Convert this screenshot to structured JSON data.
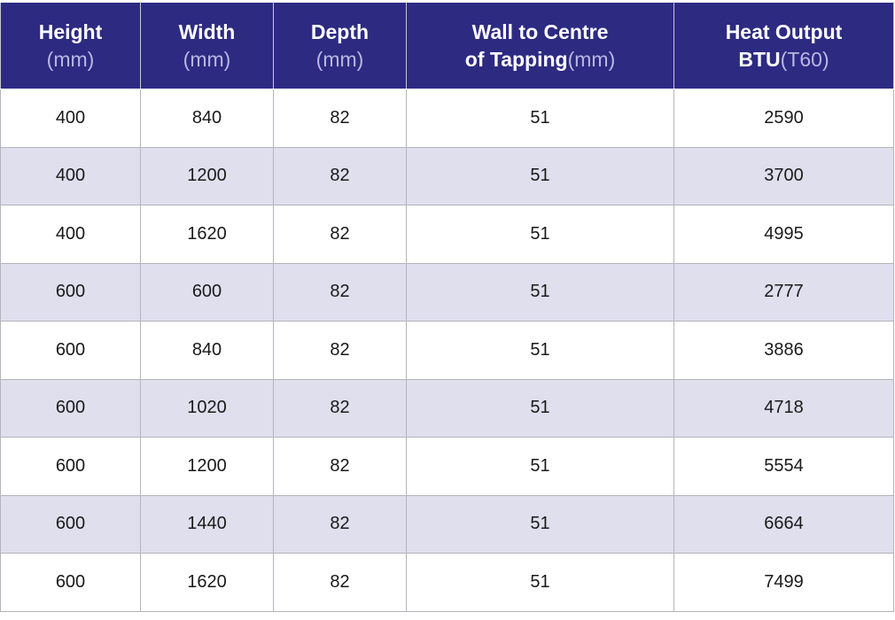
{
  "table": {
    "header": [
      {
        "title": [
          "Height"
        ],
        "unit": "(mm)"
      },
      {
        "title": [
          "Width"
        ],
        "unit": "(mm)"
      },
      {
        "title": [
          "Depth"
        ],
        "unit": "(mm)"
      },
      {
        "title": [
          "Wall to Centre",
          "of Tapping"
        ],
        "unit": "(mm)"
      },
      {
        "title": [
          "Heat Output",
          "BTU"
        ],
        "unit": "(T60)"
      }
    ],
    "rows": [
      [
        400,
        840,
        82,
        51,
        2590
      ],
      [
        400,
        1200,
        82,
        51,
        3700
      ],
      [
        400,
        1620,
        82,
        51,
        4995
      ],
      [
        600,
        600,
        82,
        51,
        2777
      ],
      [
        600,
        840,
        82,
        51,
        3886
      ],
      [
        600,
        1020,
        82,
        51,
        4718
      ],
      [
        600,
        1200,
        82,
        51,
        5554
      ],
      [
        600,
        1440,
        82,
        51,
        6664
      ],
      [
        600,
        1620,
        82,
        51,
        7499
      ]
    ]
  }
}
